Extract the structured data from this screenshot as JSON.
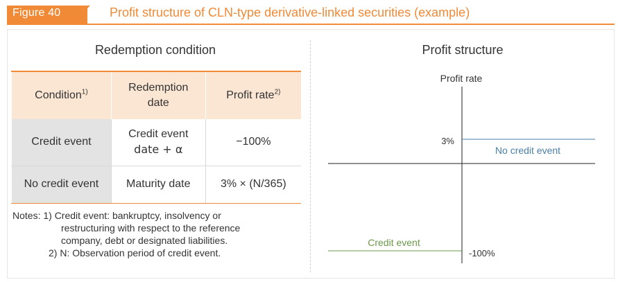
{
  "header": {
    "figure_label": "Figure 40",
    "title": "Profit structure of CLN-type derivative-linked securities (example)",
    "accent_color": "#f08a37"
  },
  "left_panel": {
    "title": "Redemption condition",
    "table": {
      "headers": {
        "condition": "Condition",
        "condition_note": "1)",
        "redemption_line1": "Redemption",
        "redemption_line2": "date",
        "profit": "Profit rate",
        "profit_note": "2)"
      },
      "rows": [
        {
          "condition": "Credit event",
          "date_line1": "Credit event",
          "date_line2": "date + α",
          "profit": "−100%"
        },
        {
          "condition": "No credit event",
          "date_line1": "Maturity date",
          "date_line2": "",
          "profit": "3% × (N/365)"
        }
      ]
    },
    "notes": [
      "Notes: 1) Credit event: bankruptcy, insolvency or",
      "restructuring with respect to the reference",
      "company, debt or designated liabilities.",
      "2) N: Observation period of credit event."
    ]
  },
  "right_panel": {
    "title": "Profit structure",
    "axis_label": "Profit rate",
    "tick_high": "3%",
    "tick_low": "-100%",
    "no_credit_label": "No credit event",
    "credit_label": "Credit event",
    "no_credit_color": "#4a7fa8",
    "credit_color": "#6a9a4a"
  }
}
